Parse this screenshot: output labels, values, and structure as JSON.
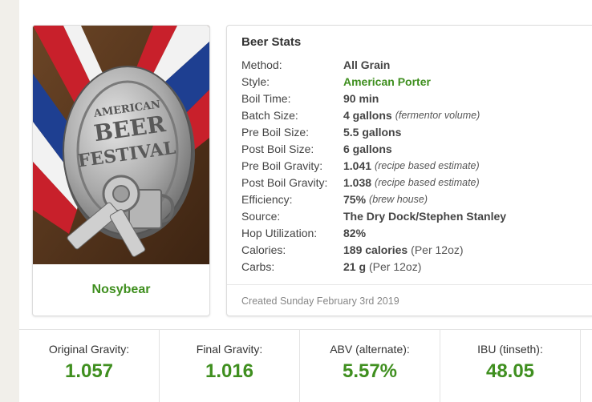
{
  "brewer": {
    "name": "Nosybear"
  },
  "beer_stats": {
    "title": "Beer Stats",
    "rows": [
      {
        "label": "Method:",
        "value": "All Grain",
        "note": ""
      },
      {
        "label": "Style:",
        "value": "American Porter",
        "note": ""
      },
      {
        "label": "Boil Time:",
        "value": "90 min",
        "note": ""
      },
      {
        "label": "Batch Size:",
        "value": "4 gallons",
        "note": "(fermentor volume)"
      },
      {
        "label": "Pre Boil Size:",
        "value": "5.5 gallons",
        "note": ""
      },
      {
        "label": "Post Boil Size:",
        "value": "6 gallons",
        "note": ""
      },
      {
        "label": "Pre Boil Gravity:",
        "value": "1.041",
        "note": "(recipe based estimate)"
      },
      {
        "label": "Post Boil Gravity:",
        "value": "1.038",
        "note": "(recipe based estimate)"
      },
      {
        "label": "Efficiency:",
        "value": "75%",
        "note": "(brew house)"
      },
      {
        "label": "Source:",
        "value": "The Dry Dock/Stephen Stanley",
        "note": ""
      },
      {
        "label": "Hop Utilization:",
        "value": "82%",
        "note": ""
      },
      {
        "label": "Calories:",
        "value": "189 calories",
        "note": "(Per 12oz)"
      },
      {
        "label": "Carbs:",
        "value": "21 g",
        "note": "(Per 12oz)"
      }
    ],
    "created": "Created Sunday February 3rd 2019"
  },
  "summary": [
    {
      "label": "Original Gravity:",
      "value": "1.057"
    },
    {
      "label": "Final Gravity:",
      "value": "1.016"
    },
    {
      "label": "ABV (alternate):",
      "value": "5.57%"
    },
    {
      "label": "IBU (tinseth):",
      "value": "48.05"
    }
  ],
  "colors": {
    "accent_green": "#3f8f1f",
    "background": "#f1efea"
  },
  "photo": {
    "icon": "medal-photo"
  }
}
